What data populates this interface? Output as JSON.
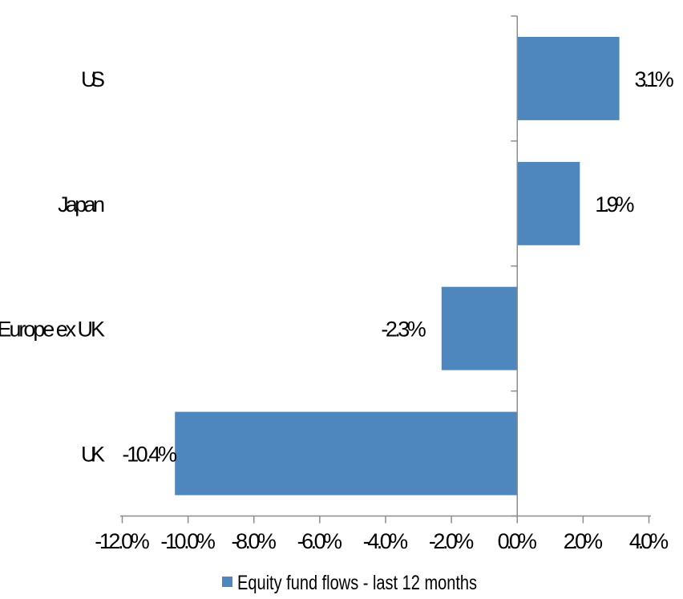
{
  "chart_data": {
    "type": "bar",
    "orientation": "horizontal",
    "title": "",
    "legend": "Equity fund flows - last 12 months",
    "legend_position": "bottom",
    "categories": [
      "US",
      "Japan",
      "Europe ex UK",
      "UK"
    ],
    "values": [
      3.1,
      1.9,
      -2.3,
      -10.4
    ],
    "value_labels": [
      "3.1%",
      "1.9%",
      "-2.3%",
      "-10.4%"
    ],
    "xlim": [
      -12,
      4
    ],
    "x_ticks": [
      -12,
      -10,
      -8,
      -6,
      -4,
      -2,
      0,
      2,
      4
    ],
    "x_tick_labels": [
      "-12.0%",
      "-10.0%",
      "-8.0%",
      "-6.0%",
      "-4.0%",
      "-2.0%",
      "0.0%",
      "2.0%",
      "4.0%"
    ],
    "grid": "off",
    "colors": {
      "bar": "#4E87BE",
      "axis": "#8C8C8C",
      "text": "#000000",
      "background": "#FFFFFF"
    }
  }
}
